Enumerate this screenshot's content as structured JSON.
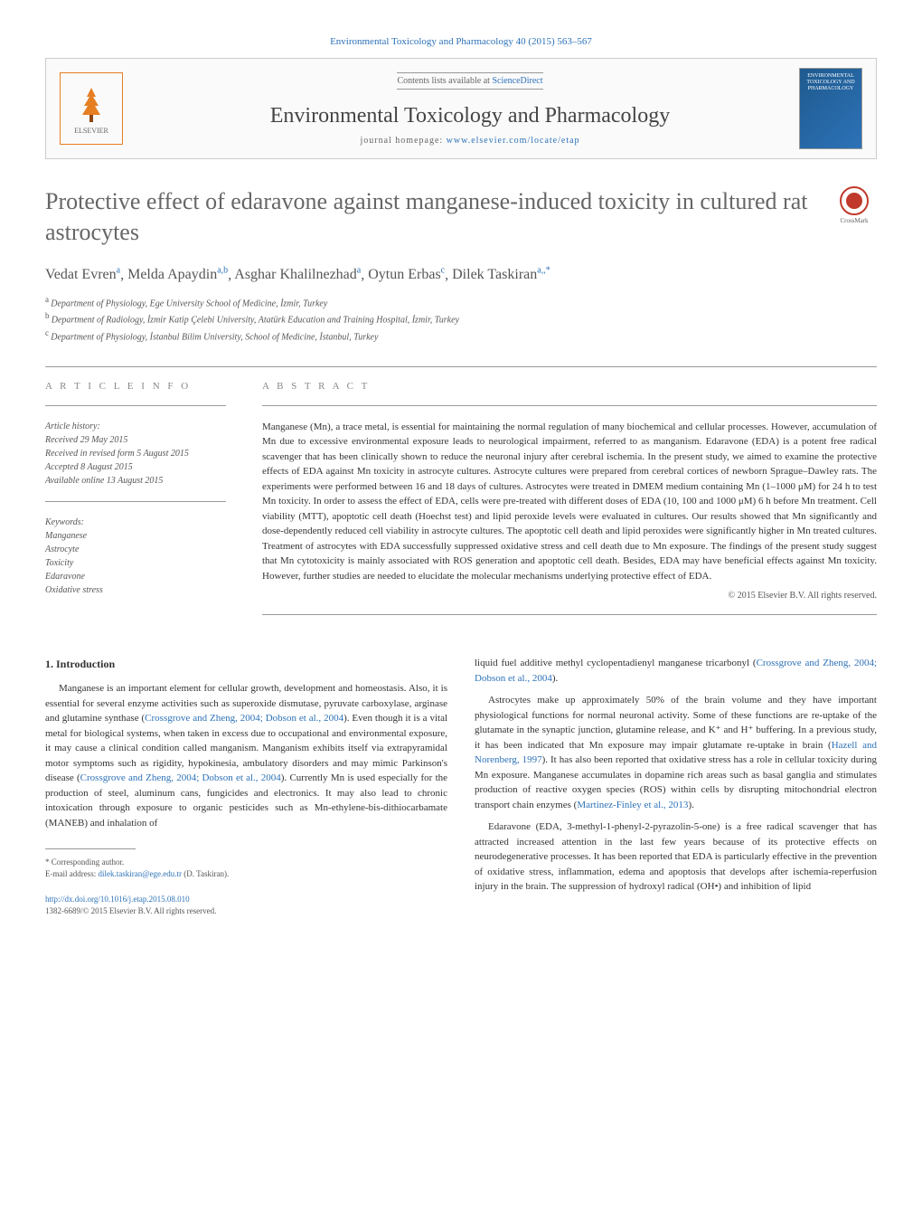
{
  "header_citation": "Environmental Toxicology and Pharmacology 40 (2015) 563–567",
  "banner": {
    "contents_prefix": "Contents lists available at ",
    "contents_link": "ScienceDirect",
    "journal_name": "Environmental Toxicology and Pharmacology",
    "homepage_prefix": "journal homepage: ",
    "homepage_url": "www.elsevier.com/locate/etap",
    "elsevier_label": "ELSEVIER",
    "cover_label": "ENVIRONMENTAL TOXICOLOGY AND PHARMACOLOGY"
  },
  "crossmark_label": "CrossMark",
  "title": "Protective effect of edaravone against manganese-induced toxicity in cultured rat astrocytes",
  "authors_html": "Vedat Evren",
  "authors": [
    {
      "name": "Vedat Evren",
      "sup": "a"
    },
    {
      "name": "Melda Apaydin",
      "sup": "a,b"
    },
    {
      "name": "Asghar Khalilnezhad",
      "sup": "a"
    },
    {
      "name": "Oytun Erbas",
      "sup": "c"
    },
    {
      "name": "Dilek Taskiran",
      "sup": "a,*"
    }
  ],
  "affiliations": [
    {
      "sup": "a",
      "text": "Department of Physiology, Ege University School of Medicine, İzmir, Turkey"
    },
    {
      "sup": "b",
      "text": "Department of Radiology, İzmir Katip Çelebi University, Atatürk Education and Training Hospital, İzmir, Turkey"
    },
    {
      "sup": "c",
      "text": "Department of Physiology, İstanbul Bilim University, School of Medicine, İstanbul, Turkey"
    }
  ],
  "info_heading": "A R T I C L E   I N F O",
  "abstract_heading": "A B S T R A C T",
  "history_label": "Article history:",
  "history": [
    "Received 29 May 2015",
    "Received in revised form 5 August 2015",
    "Accepted 8 August 2015",
    "Available online 13 August 2015"
  ],
  "keywords_label": "Keywords:",
  "keywords": [
    "Manganese",
    "Astrocyte",
    "Toxicity",
    "Edaravone",
    "Oxidative stress"
  ],
  "abstract": "Manganese (Mn), a trace metal, is essential for maintaining the normal regulation of many biochemical and cellular processes. However, accumulation of Mn due to excessive environmental exposure leads to neurological impairment, referred to as manganism. Edaravone (EDA) is a potent free radical scavenger that has been clinically shown to reduce the neuronal injury after cerebral ischemia. In the present study, we aimed to examine the protective effects of EDA against Mn toxicity in astrocyte cultures. Astrocyte cultures were prepared from cerebral cortices of newborn Sprague–Dawley rats. The experiments were performed between 16 and 18 days of cultures. Astrocytes were treated in DMEM medium containing Mn (1–1000 μM) for 24 h to test Mn toxicity. In order to assess the effect of EDA, cells were pre-treated with different doses of EDA (10, 100 and 1000 μM) 6 h before Mn treatment. Cell viability (MTT), apoptotic cell death (Hoechst test) and lipid peroxide levels were evaluated in cultures. Our results showed that Mn significantly and dose-dependently reduced cell viability in astrocyte cultures. The apoptotic cell death and lipid peroxides were significantly higher in Mn treated cultures. Treatment of astrocytes with EDA successfully suppressed oxidative stress and cell death due to Mn exposure. The findings of the present study suggest that Mn cytotoxicity is mainly associated with ROS generation and apoptotic cell death. Besides, EDA may have beneficial effects against Mn toxicity. However, further studies are needed to elucidate the molecular mechanisms underlying protective effect of EDA.",
  "copyright": "© 2015 Elsevier B.V. All rights reserved.",
  "intro_heading": "1. Introduction",
  "intro_p1_a": "Manganese is an important element for cellular growth, development and homeostasis. Also, it is essential for several enzyme activities such as superoxide dismutase, pyruvate carboxylase, arginase and glutamine synthase (",
  "intro_p1_ref1": "Crossgrove and Zheng, 2004; Dobson et al., 2004",
  "intro_p1_b": "). Even though it is a vital metal for biological systems, when taken in excess due to occupational and environmental exposure, it may cause a clinical condition called manganism. Manganism exhibits itself via extrapyramidal motor symptoms such as rigidity, hypokinesia, ambulatory disorders and may mimic Parkinson's disease (",
  "intro_p1_ref2": "Crossgrove and Zheng, 2004; Dobson et al., 2004",
  "intro_p1_c": "). Currently Mn is used especially for the production of steel, aluminum cans, fungicides and electronics. It may also lead to chronic intoxication through exposure to organic pesticides such as Mn-ethylene-bis-dithiocarbamate (MANEB) and inhalation of",
  "col2_p1_a": "liquid fuel additive methyl cyclopentadienyl manganese tricarbonyl (",
  "col2_p1_ref": "Crossgrove and Zheng, 2004; Dobson et al., 2004",
  "col2_p1_b": ").",
  "col2_p2_a": "Astrocytes make up approximately 50% of the brain volume and they have important physiological functions for normal neuronal activity. Some of these functions are re-uptake of the glutamate in the synaptic junction, glutamine release, and K⁺ and H⁺ buffering. In a previous study, it has been indicated that Mn exposure may impair glutamate re-uptake in brain (",
  "col2_p2_ref1": "Hazell and Norenberg, 1997",
  "col2_p2_b": "). It has also been reported that oxidative stress has a role in cellular toxicity during Mn exposure. Manganese accumulates in dopamine rich areas such as basal ganglia and stimulates production of reactive oxygen species (ROS) within cells by disrupting mitochondrial electron transport chain enzymes (",
  "col2_p2_ref2": "Martinez-Finley et al., 2013",
  "col2_p2_c": ").",
  "col2_p3": "Edaravone (EDA, 3-methyl-1-phenyl-2-pyrazolin-5-one) is a free radical scavenger that has attracted increased attention in the last few years because of its protective effects on neurodegenerative processes. It has been reported that EDA is particularly effective in the prevention of oxidative stress, inflammation, edema and apoptosis that develops after ischemia-reperfusion injury in the brain. The suppression of hydroxyl radical (OH•) and inhibition of lipid",
  "footnote_corr": "* Corresponding author.",
  "footnote_email_label": "E-mail address: ",
  "footnote_email": "dilek.taskiran@ege.edu.tr",
  "footnote_email_suffix": " (D. Taskiran).",
  "doi": "http://dx.doi.org/10.1016/j.etap.2015.08.010",
  "issn_copyright": "1382-6689/© 2015 Elsevier B.V. All rights reserved.",
  "colors": {
    "link": "#2d72b8",
    "text": "#333333",
    "muted": "#666666",
    "elsevier": "#e67e22",
    "crossmark": "#c0392b"
  }
}
